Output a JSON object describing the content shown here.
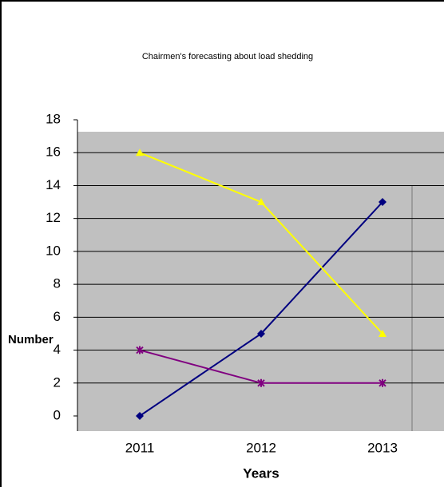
{
  "chart_data": {
    "type": "line",
    "title": "Chairmen's forecasting about load shedding",
    "x_label": "Years",
    "y_label": "Number",
    "categories": [
      "2011",
      "2012",
      "2013"
    ],
    "series": [
      {
        "color": "#000080",
        "marker": "diamond",
        "values": [
          0,
          5,
          13
        ]
      },
      {
        "color": "#ffff00",
        "marker": "triangle",
        "values": [
          16,
          13,
          5
        ]
      },
      {
        "color": "#800080",
        "marker": "x",
        "values": [
          4,
          2,
          2
        ]
      }
    ],
    "ylim": [
      0,
      18
    ],
    "yticks": [
      0,
      2,
      4,
      6,
      8,
      10,
      12,
      14,
      16,
      18
    ],
    "grid": true
  }
}
